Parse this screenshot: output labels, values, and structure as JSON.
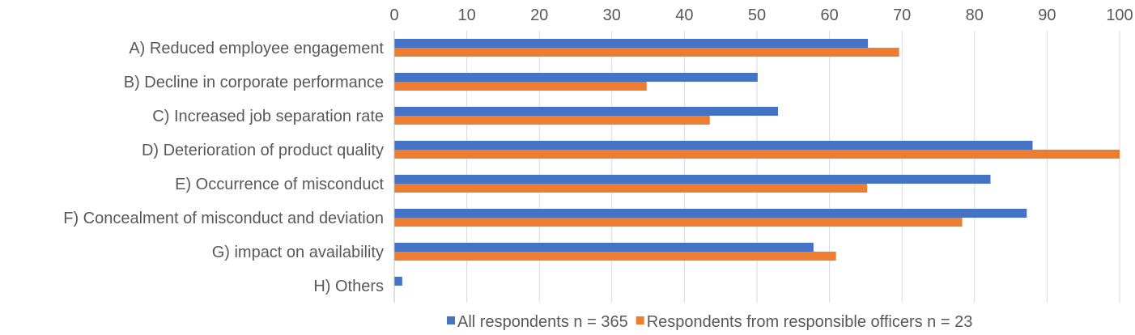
{
  "chart_data": {
    "type": "bar",
    "orientation": "horizontal",
    "xlim": [
      0,
      100
    ],
    "x_ticks": [
      "0",
      "10",
      "20",
      "30",
      "40",
      "50",
      "60",
      "70",
      "80",
      "90",
      "100"
    ],
    "x_axis_position": "top",
    "grid": true,
    "legend_position": "bottom",
    "categories": [
      "A) Reduced employee engagement",
      "B) Decline in corporate performance",
      "C) Increased job separation rate",
      "D) Deterioration of product quality",
      "E) Occurrence of misconduct",
      "F) Concealment of misconduct and deviation",
      "G) impact on availability",
      "H) Others"
    ],
    "series": [
      {
        "name": "All respondents n = 365",
        "color": "#4472C4",
        "values": [
          65.3,
          50.1,
          52.9,
          88.0,
          82.2,
          87.2,
          57.8,
          1.1
        ]
      },
      {
        "name": "Respondents from responsible officers n = 23",
        "color": "#ED7D31",
        "values": [
          69.6,
          34.8,
          43.5,
          100.0,
          65.2,
          78.3,
          60.9,
          0
        ]
      }
    ]
  }
}
